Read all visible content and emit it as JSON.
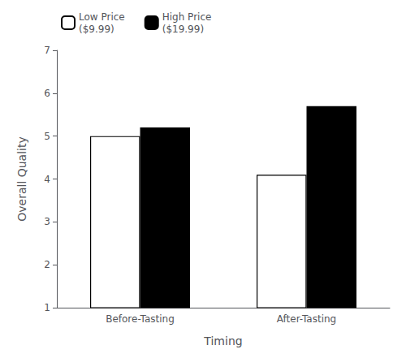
{
  "chart_data": {
    "type": "bar",
    "xlabel": "Timing",
    "ylabel": "Overall Quality",
    "categories": [
      "Before-Tasting",
      "After-Tasting"
    ],
    "series": [
      {
        "name": "Low Price\n($9.99)",
        "color": "#ffffff",
        "values": [
          5.0,
          4.1
        ]
      },
      {
        "name": "High Price\n($19.99)",
        "color": "#000000",
        "values": [
          5.2,
          5.7
        ]
      }
    ],
    "ylim": [
      1,
      7
    ],
    "yticks": [
      1,
      2,
      3,
      4,
      5,
      6,
      7
    ],
    "grid": false,
    "legend": "upper left"
  }
}
